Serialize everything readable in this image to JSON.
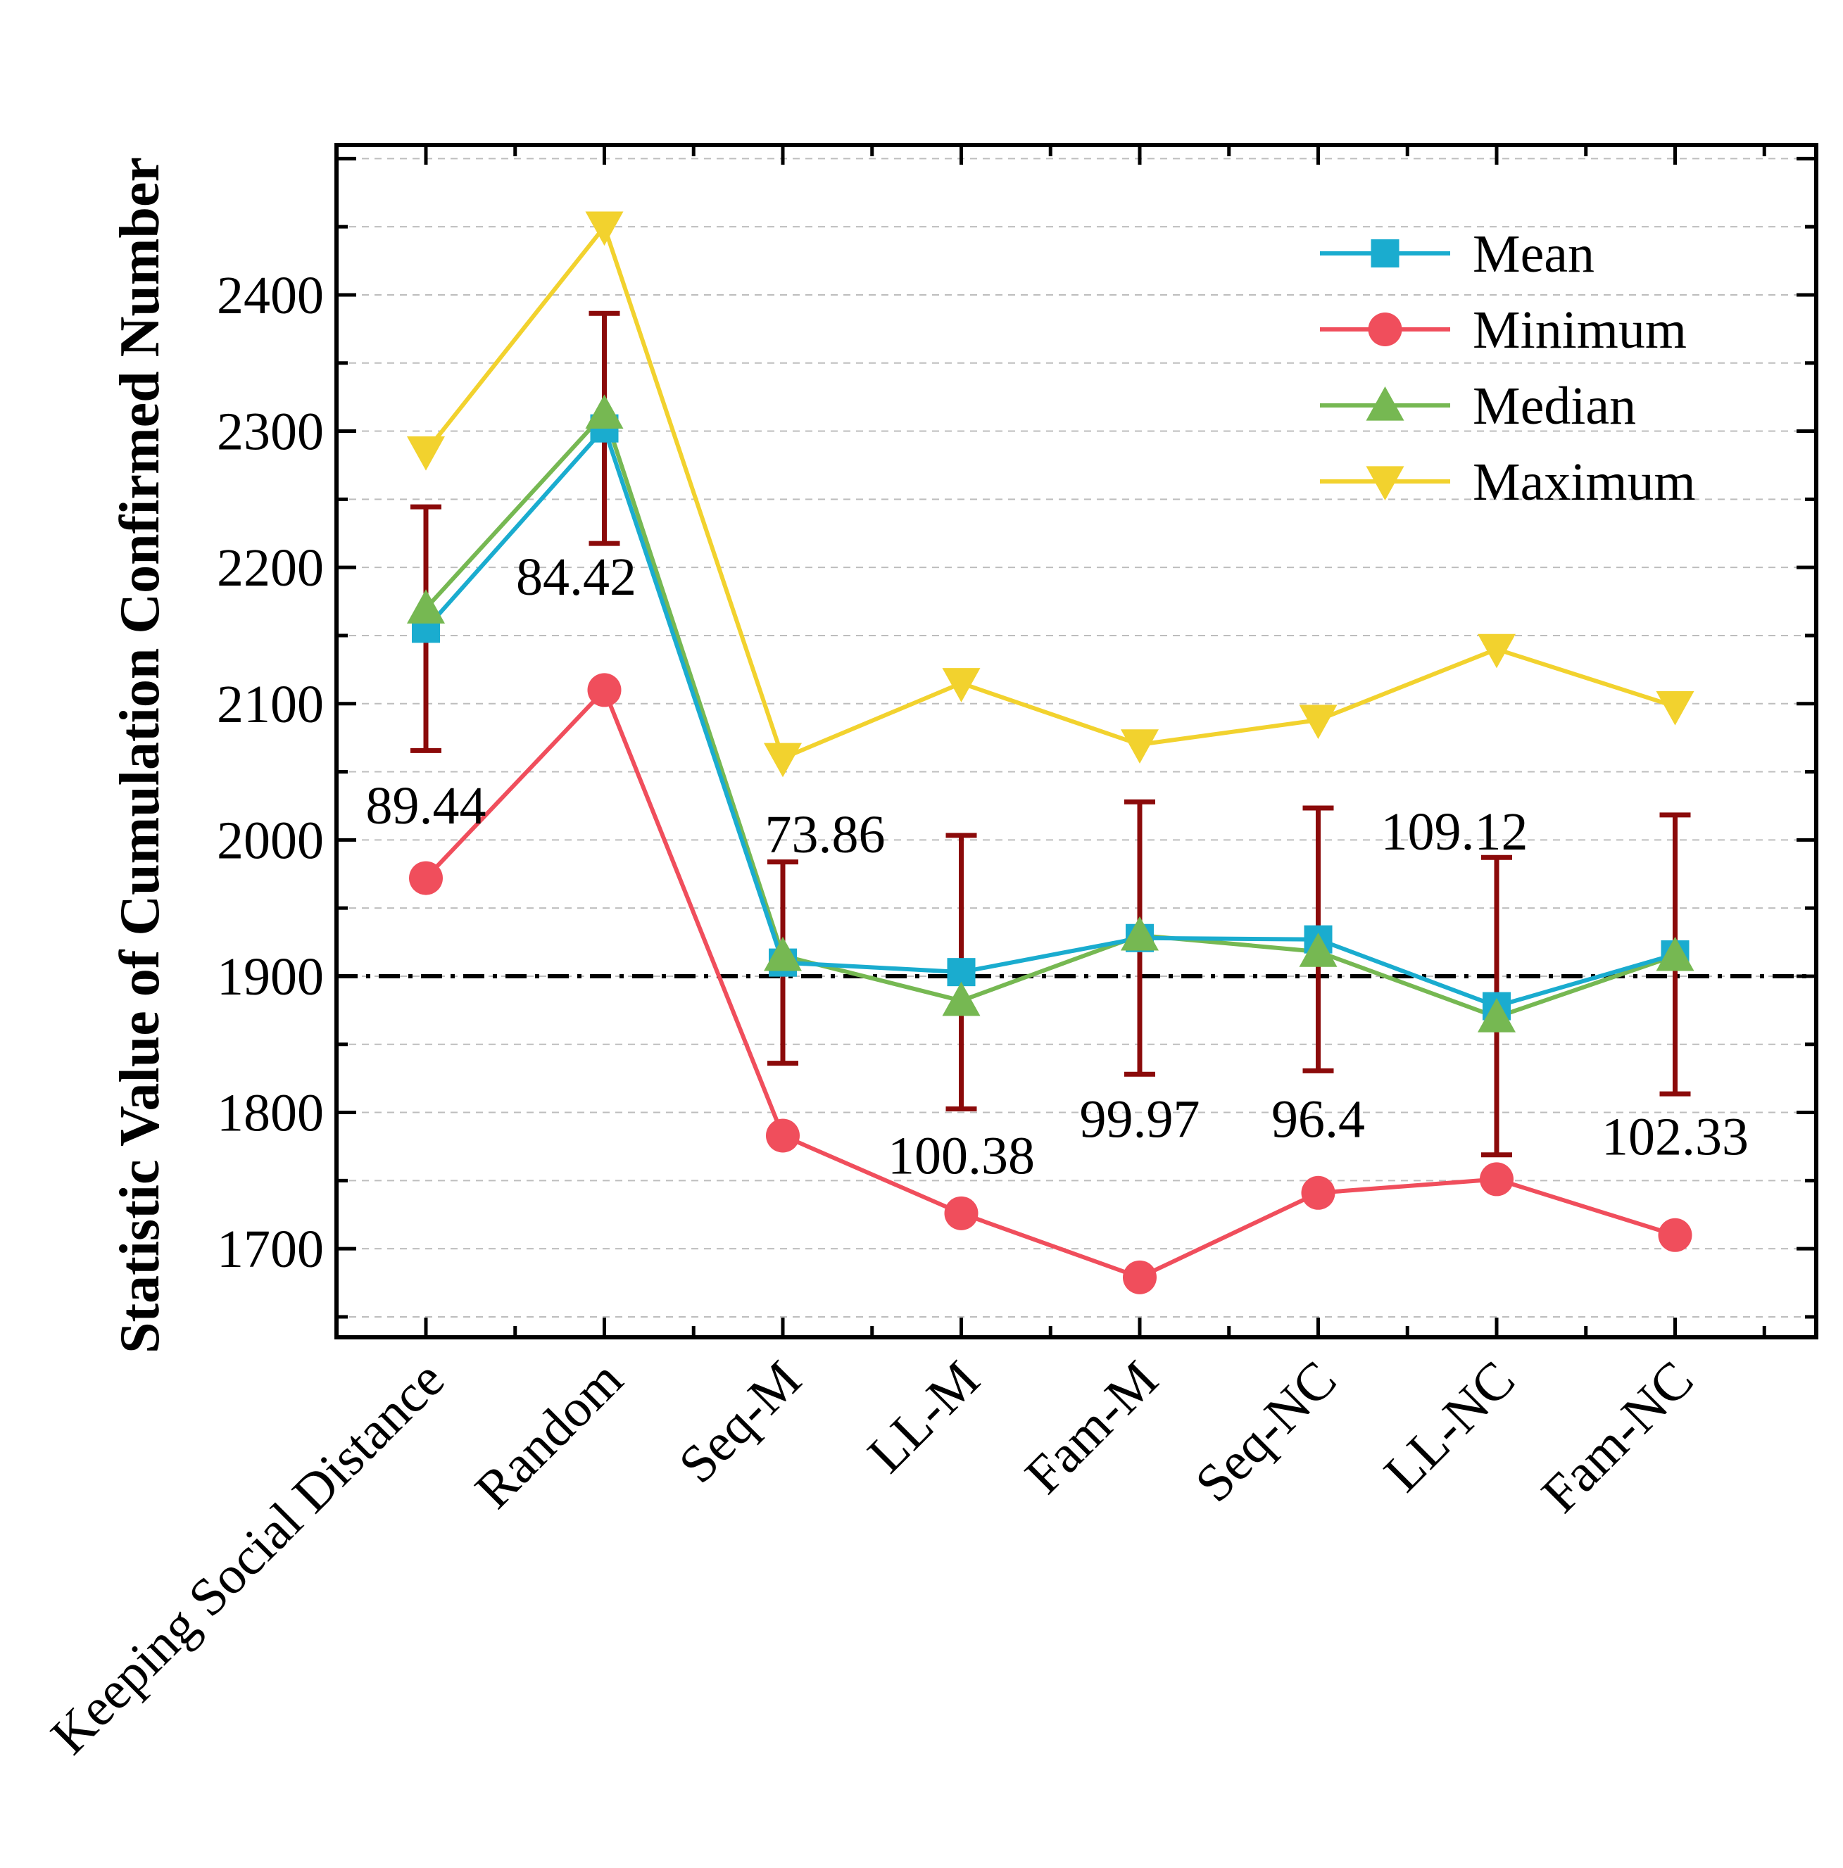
{
  "chart_data": {
    "type": "line",
    "xlabel": "",
    "ylabel": "Statistic Value of Cumulation Confirmed Number",
    "ylim": [
      1635,
      2510
    ],
    "yticks": [
      1700,
      1800,
      1900,
      2000,
      2100,
      2200,
      2300,
      2400
    ],
    "grid": "horizontal dashed, every 50",
    "legend_position": "top-right",
    "categories": [
      "Keeping Social Distance",
      "Random",
      "Seq-M",
      "LL-M",
      "Fam-M",
      "Seq-NC",
      "LL-NC",
      "Fam-NC"
    ],
    "series": [
      {
        "name": "Mean",
        "marker": "square",
        "color": "#1aaccf",
        "values": [
          2155,
          2302,
          1910,
          1903,
          1928,
          1927,
          1878,
          1916
        ],
        "error_bars": [
          89.44,
          84.42,
          73.86,
          100.38,
          99.97,
          96.4,
          109.12,
          102.33
        ]
      },
      {
        "name": "Minimum",
        "marker": "circle",
        "color": "#f04e5c",
        "values": [
          1972,
          2110,
          1783,
          1726,
          1679,
          1741,
          1751,
          1710
        ]
      },
      {
        "name": "Median",
        "marker": "triangle-up",
        "color": "#76b852",
        "values": [
          2170,
          2313,
          1915,
          1882,
          1930,
          1918,
          1870,
          1915
        ]
      },
      {
        "name": "Maximum",
        "marker": "triangle-down",
        "color": "#f2d22e",
        "values": [
          2285,
          2450,
          2060,
          2115,
          2070,
          2088,
          2140,
          2098
        ]
      }
    ],
    "error_bar_color": "#8b0a0a",
    "error_bar_labels": [
      "89.44",
      "84.42",
      "73.86",
      "100.38",
      "99.97",
      "96.4",
      "109.12",
      "102.33"
    ],
    "reference_line": {
      "y": 1900,
      "style": "dash-dot",
      "color": "#000000"
    }
  }
}
